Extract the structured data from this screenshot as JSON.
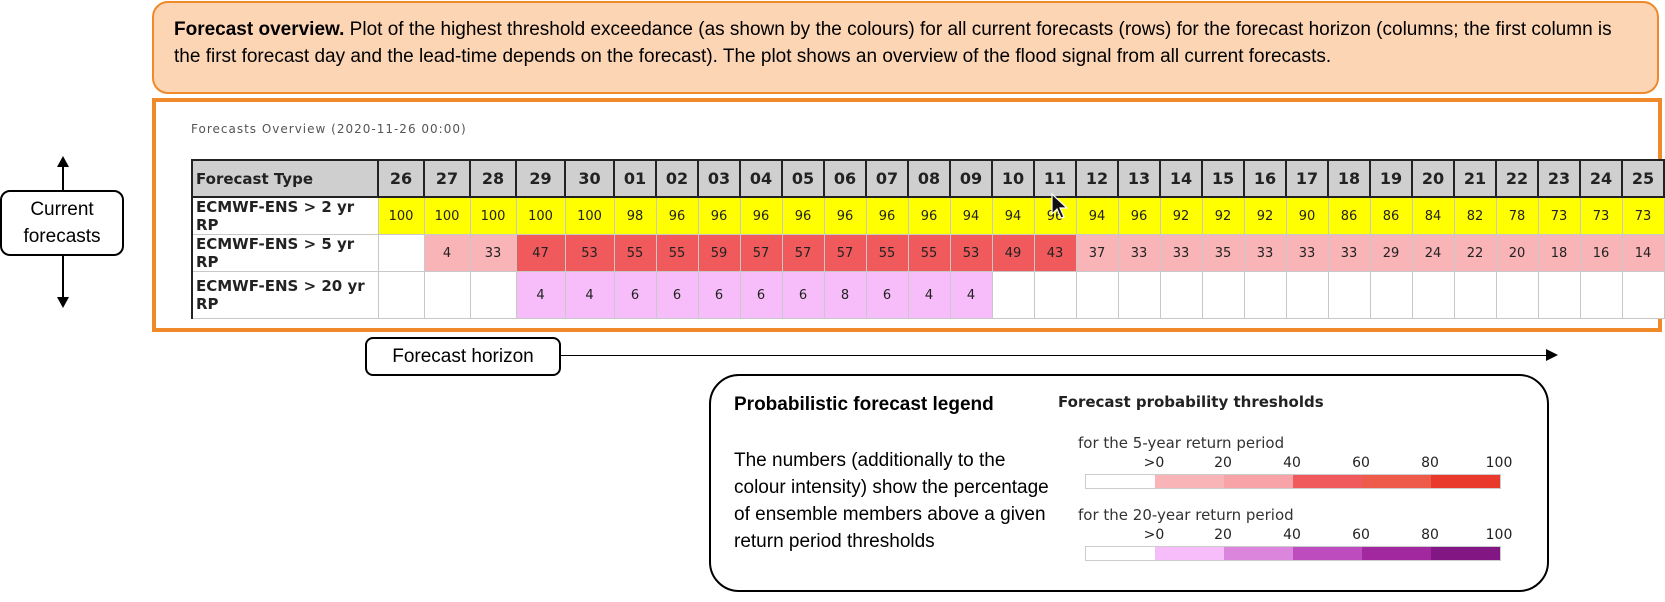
{
  "callout": {
    "title": "Forecast overview.",
    "text": " Plot of the highest threshold exceedance (as shown by the colours) for all current forecasts (rows) for the forecast horizon (columns; the first column is the first forecast day and the lead-time depends on the forecast). The plot shows an overview of the flood signal from all current forecasts."
  },
  "panel_title": "Forecasts Overview (2020-11-26 00:00)",
  "table": {
    "type_header": "Forecast Type",
    "days": [
      "26",
      "27",
      "28",
      "29",
      "30",
      "01",
      "02",
      "03",
      "04",
      "05",
      "06",
      "07",
      "08",
      "09",
      "10",
      "11",
      "12",
      "13",
      "14",
      "15",
      "16",
      "17",
      "18",
      "19",
      "20",
      "21",
      "22",
      "23",
      "24",
      "25"
    ],
    "rows": [
      {
        "label": "ECMWF-ENS > 2 yr RP",
        "values": [
          "100",
          "100",
          "100",
          "100",
          "100",
          "98",
          "96",
          "96",
          "96",
          "96",
          "96",
          "96",
          "96",
          "94",
          "94",
          "96",
          "94",
          "96",
          "92",
          "92",
          "92",
          "90",
          "86",
          "86",
          "84",
          "82",
          "78",
          "73",
          "73",
          "73"
        ],
        "colors": [
          "#ffff00",
          "#ffff00",
          "#ffff00",
          "#ffff00",
          "#ffff00",
          "#ffff00",
          "#ffff00",
          "#ffff00",
          "#ffff00",
          "#ffff00",
          "#ffff00",
          "#ffff00",
          "#ffff00",
          "#ffff00",
          "#ffff00",
          "#ffff00",
          "#ffff00",
          "#ffff00",
          "#ffff00",
          "#ffff00",
          "#ffff00",
          "#ffff00",
          "#ffff00",
          "#ffff00",
          "#ffff00",
          "#ffff00",
          "#ffff00",
          "#ffff00",
          "#ffff00",
          "#ffff00"
        ]
      },
      {
        "label": "ECMWF-ENS > 5 yr RP",
        "values": [
          "",
          "4",
          "33",
          "47",
          "53",
          "55",
          "55",
          "59",
          "57",
          "57",
          "57",
          "55",
          "55",
          "53",
          "49",
          "43",
          "37",
          "33",
          "33",
          "35",
          "33",
          "33",
          "33",
          "29",
          "24",
          "22",
          "20",
          "18",
          "16",
          "14"
        ],
        "colors": [
          "#ffffff",
          "#f9b4b8",
          "#f9b4b8",
          "#f05a5c",
          "#f05a5c",
          "#f05a5c",
          "#f05a5c",
          "#f05a5c",
          "#f05a5c",
          "#f05a5c",
          "#f05a5c",
          "#f05a5c",
          "#f05a5c",
          "#f05a5c",
          "#f05a5c",
          "#f05a5c",
          "#f9b4b8",
          "#f9b4b8",
          "#f9b4b8",
          "#f9b4b8",
          "#f9b4b8",
          "#f9b4b8",
          "#f9b4b8",
          "#f9b4b8",
          "#f9b4b8",
          "#f9b4b8",
          "#f9b4b8",
          "#f9b4b8",
          "#f9b4b8",
          "#f9b4b8"
        ]
      },
      {
        "label": "ECMWF-ENS > 20 yr RP",
        "values": [
          "",
          "",
          "",
          "4",
          "4",
          "6",
          "6",
          "6",
          "6",
          "6",
          "8",
          "6",
          "4",
          "4",
          "",
          "",
          "",
          "",
          "",
          "",
          "",
          "",
          "",
          "",
          "",
          "",
          "",
          "",
          "",
          ""
        ],
        "colors": [
          "#ffffff",
          "#ffffff",
          "#ffffff",
          "#f7bdfa",
          "#f7bdfa",
          "#f7bdfa",
          "#f7bdfa",
          "#f7bdfa",
          "#f7bdfa",
          "#f7bdfa",
          "#f7bdfa",
          "#f7bdfa",
          "#f7bdfa",
          "#f7bdfa",
          "#ffffff",
          "#ffffff",
          "#ffffff",
          "#ffffff",
          "#ffffff",
          "#ffffff",
          "#ffffff",
          "#ffffff",
          "#ffffff",
          "#ffffff",
          "#ffffff",
          "#ffffff",
          "#ffffff",
          "#ffffff",
          "#ffffff",
          "#ffffff"
        ]
      }
    ]
  },
  "labels": {
    "current_forecasts": "Current forecasts",
    "forecast_horizon": "Forecast horizon"
  },
  "legend": {
    "title": "Probabilistic forecast legend",
    "text": "The numbers (additionally to the colour intensity) show the percentage of ensemble members above a given return period thresholds",
    "right_title": "Forecast probability thresholds",
    "rp5": {
      "label": "for the 5-year return period",
      "ticks": [
        ">0",
        "20",
        "40",
        "60",
        "80",
        "100"
      ],
      "colors": [
        "#ffffff",
        "#f9b4b8",
        "#f7a3a8",
        "#f05a5c",
        "#ee5b4a",
        "#e8392c"
      ]
    },
    "rp20": {
      "label": "for the 20-year return period",
      "ticks": [
        ">0",
        "20",
        "40",
        "60",
        "80",
        "100"
      ],
      "colors": [
        "#ffffff",
        "#f7bdfa",
        "#db85dc",
        "#bd4dbf",
        "#a2289f",
        "#821683"
      ]
    }
  }
}
